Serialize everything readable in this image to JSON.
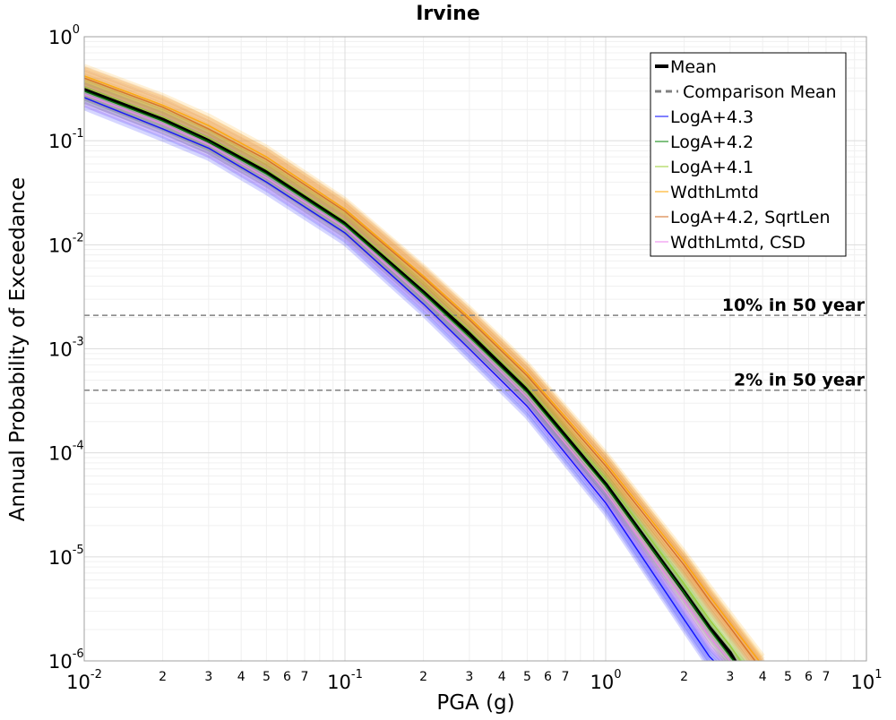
{
  "chart_data": {
    "type": "line",
    "title": "Irvine",
    "xlabel": "PGA (g)",
    "ylabel": "Annual Probability of Exceedance",
    "xscale": "log",
    "yscale": "log",
    "xlim": [
      0.01,
      10
    ],
    "ylim": [
      1e-06,
      1
    ],
    "grid": true,
    "legend_position": "top-right",
    "x_major_ticks": [
      {
        "value": 0.01,
        "base": "10",
        "exp": "-2"
      },
      {
        "value": 0.1,
        "base": "10",
        "exp": "-1"
      },
      {
        "value": 1,
        "base": "10",
        "exp": "0"
      },
      {
        "value": 10,
        "base": "10",
        "exp": "1"
      }
    ],
    "x_minor_tick_labels": [
      "2",
      "3",
      "4",
      "5",
      "6",
      "7"
    ],
    "y_major_ticks": [
      {
        "value": 1,
        "base": "10",
        "exp": "0"
      },
      {
        "value": 0.1,
        "base": "10",
        "exp": "-1"
      },
      {
        "value": 0.01,
        "base": "10",
        "exp": "-2"
      },
      {
        "value": 0.001,
        "base": "10",
        "exp": "-3"
      },
      {
        "value": 0.0001,
        "base": "10",
        "exp": "-4"
      },
      {
        "value": 1e-05,
        "base": "10",
        "exp": "-5"
      },
      {
        "value": 1e-06,
        "base": "10",
        "exp": "-6"
      }
    ],
    "reference_lines": [
      {
        "label": "10% in 50 year",
        "y": 0.0021,
        "color": "#808080",
        "style": "dashed"
      },
      {
        "label": "2% in 50 year",
        "y": 0.0004,
        "color": "#808080",
        "style": "dashed"
      }
    ],
    "series": [
      {
        "name": "Mean",
        "color": "#000000",
        "width": 4,
        "x": [
          0.01,
          0.02,
          0.03,
          0.05,
          0.1,
          0.2,
          0.3,
          0.5,
          1,
          2,
          2.5,
          3,
          3.3
        ],
        "y": [
          0.31,
          0.16,
          0.1,
          0.05,
          0.016,
          0.0035,
          0.0014,
          0.0004,
          5e-05,
          4.6e-06,
          2.1e-06,
          1.2e-06,
          8e-07
        ]
      },
      {
        "name": "Comparison Mean",
        "color": "#808080",
        "style": "dashed",
        "x": [],
        "y": []
      },
      {
        "name": "LogA+4.3",
        "color": "#0000ff",
        "x": [
          0.01,
          0.02,
          0.03,
          0.05,
          0.1,
          0.2,
          0.3,
          0.5,
          1,
          2,
          2.5,
          3
        ],
        "y": [
          0.26,
          0.13,
          0.085,
          0.04,
          0.013,
          0.0027,
          0.001,
          0.00028,
          3.3e-05,
          2.5e-06,
          1.1e-06,
          7e-07
        ]
      },
      {
        "name": "LogA+4.2",
        "color": "#008000",
        "x": [
          0.01,
          0.02,
          0.03,
          0.05,
          0.1,
          0.2,
          0.3,
          0.5,
          1,
          2,
          2.5,
          3,
          3.5
        ],
        "y": [
          0.3,
          0.155,
          0.098,
          0.048,
          0.0155,
          0.0034,
          0.0013,
          0.00038,
          4.8e-05,
          4.5e-06,
          2e-06,
          1.1e-06,
          7e-07
        ]
      },
      {
        "name": "LogA+4.1",
        "color": "#9acd32",
        "x": [
          0.01,
          0.02,
          0.03,
          0.05,
          0.1,
          0.2,
          0.3,
          0.5,
          1,
          2,
          2.5,
          3,
          3.5
        ],
        "y": [
          0.33,
          0.17,
          0.107,
          0.053,
          0.017,
          0.0038,
          0.0015,
          0.00043,
          5.6e-05,
          5.5e-06,
          2.5e-06,
          1.4e-06,
          8e-07
        ]
      },
      {
        "name": "WdthLmtd",
        "color": "#ffa500",
        "x": [
          0.01,
          0.02,
          0.03,
          0.05,
          0.1,
          0.2,
          0.3,
          0.5,
          1,
          2,
          2.5,
          3,
          4
        ],
        "y": [
          0.42,
          0.22,
          0.14,
          0.07,
          0.022,
          0.005,
          0.002,
          0.00058,
          8e-05,
          9e-06,
          4.2e-06,
          2.3e-06,
          9e-07
        ]
      },
      {
        "name": "LogA+4.2, SqrtLen",
        "color": "#d2691e",
        "x": [
          0.01,
          0.02,
          0.03,
          0.05,
          0.1,
          0.2,
          0.3,
          0.5,
          1,
          2,
          2.5,
          3,
          4
        ],
        "y": [
          0.4,
          0.21,
          0.13,
          0.066,
          0.021,
          0.0048,
          0.0019,
          0.00055,
          7.5e-05,
          8.3e-06,
          3.8e-06,
          2.1e-06,
          8e-07
        ]
      },
      {
        "name": "WdthLmtd, CSD",
        "color": "#ee82ee",
        "x": [
          0.01,
          0.02,
          0.03,
          0.05,
          0.1,
          0.2,
          0.3,
          0.5,
          1,
          2,
          2.5,
          3,
          3.5
        ],
        "y": [
          0.28,
          0.145,
          0.092,
          0.044,
          0.0145,
          0.0031,
          0.0012,
          0.00034,
          4.2e-05,
          3.8e-06,
          1.7e-06,
          1e-06,
          6e-07
        ]
      }
    ]
  }
}
